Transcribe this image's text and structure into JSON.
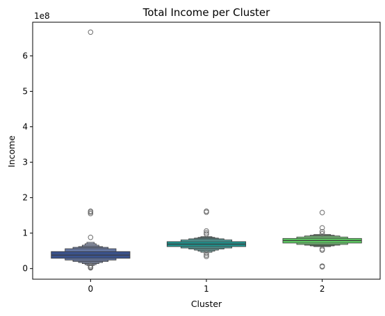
{
  "chart_data": {
    "type": "boxen",
    "title": "Total Income per Cluster",
    "xlabel": "Cluster",
    "ylabel": "Income",
    "y_offset_label": "1e8",
    "y_scale": 100000000,
    "ylim": [
      -0.3,
      6.95
    ],
    "yticks": [
      0,
      1,
      2,
      3,
      4,
      5,
      6
    ],
    "categories": [
      "0",
      "1",
      "2"
    ],
    "colors": [
      "#3b528b",
      "#21918c",
      "#5ec962"
    ],
    "series": [
      {
        "category": "0",
        "boxes": [
          {
            "lo": 0.29,
            "hi": 0.48,
            "w": 0.85
          },
          {
            "lo": 0.24,
            "hi": 0.56,
            "w": 0.55
          },
          {
            "lo": 0.2,
            "hi": 0.6,
            "w": 0.38
          },
          {
            "lo": 0.17,
            "hi": 0.62,
            "w": 0.26
          },
          {
            "lo": 0.14,
            "hi": 0.66,
            "w": 0.18
          },
          {
            "lo": 0.11,
            "hi": 0.7,
            "w": 0.12
          },
          {
            "lo": 0.09,
            "hi": 0.74,
            "w": 0.08
          }
        ],
        "median": 0.38,
        "outliers": [
          6.67,
          1.62,
          1.59,
          1.55,
          0.88,
          0.08,
          0.05,
          0.03,
          0.02
        ]
      },
      {
        "category": "1",
        "boxes": [
          {
            "lo": 0.62,
            "hi": 0.76,
            "w": 0.85
          },
          {
            "lo": 0.58,
            "hi": 0.81,
            "w": 0.55
          },
          {
            "lo": 0.55,
            "hi": 0.84,
            "w": 0.38
          },
          {
            "lo": 0.52,
            "hi": 0.86,
            "w": 0.26
          },
          {
            "lo": 0.49,
            "hi": 0.88,
            "w": 0.18
          },
          {
            "lo": 0.46,
            "hi": 0.9,
            "w": 0.12
          }
        ],
        "median": 0.69,
        "outliers": [
          1.62,
          1.59,
          1.06,
          1.01,
          0.97,
          0.43,
          0.38,
          0.34
        ]
      },
      {
        "category": "2",
        "boxes": [
          {
            "lo": 0.72,
            "hi": 0.85,
            "w": 0.85
          },
          {
            "lo": 0.68,
            "hi": 0.89,
            "w": 0.55
          },
          {
            "lo": 0.66,
            "hi": 0.92,
            "w": 0.38
          },
          {
            "lo": 0.64,
            "hi": 0.94,
            "w": 0.26
          },
          {
            "lo": 0.62,
            "hi": 0.96,
            "w": 0.18
          }
        ],
        "median": 0.79,
        "outliers": [
          1.58,
          1.15,
          1.04,
          0.98,
          0.55,
          0.52,
          0.07,
          0.05
        ]
      }
    ],
    "grid": false,
    "legend": "none"
  }
}
